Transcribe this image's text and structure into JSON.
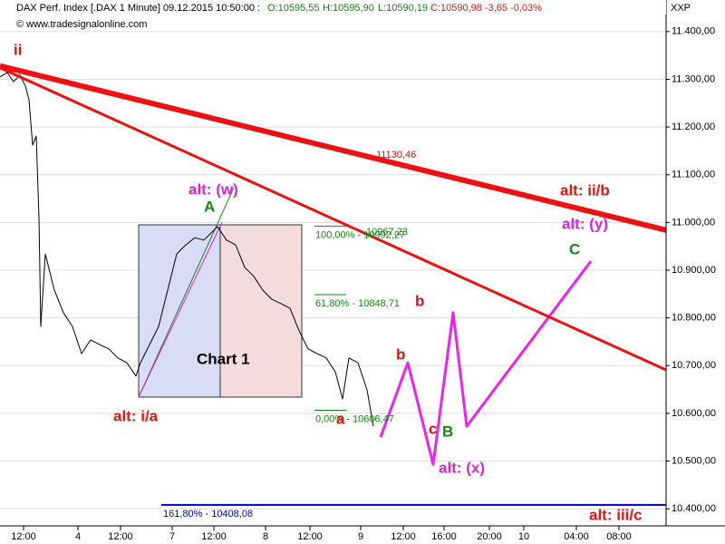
{
  "header": {
    "instrument": "DAX Perf. Index [.DAX  1 Minute] 09.12.2015 10:50:00 :",
    "open": "O:10595,55",
    "high": "H:10595,90",
    "low": "L:10590,19",
    "close": "C:10590,98 -3,65 -0,03%",
    "copyright": "© www.tradesignalonline.com",
    "axis_code": "XXP"
  },
  "chart_data": {
    "type": "line",
    "xlim": [
      0,
      147
    ],
    "ylim": [
      10368,
      11451
    ],
    "grid": true,
    "xticks": [
      {
        "value": 5.2,
        "label": "12:00"
      },
      {
        "value": 17.2,
        "label": "4"
      },
      {
        "value": 26.6,
        "label": "12:00"
      },
      {
        "value": 38,
        "label": "7"
      },
      {
        "value": 47.2,
        "label": "12:00"
      },
      {
        "value": 58.6,
        "label": "8"
      },
      {
        "value": 68.4,
        "label": "12:00"
      },
      {
        "value": 79.6,
        "label": "9"
      },
      {
        "value": 89,
        "label": "12:00"
      },
      {
        "value": 98,
        "label": "16:00"
      },
      {
        "value": 108,
        "label": "20:00"
      },
      {
        "value": 115.6,
        "label": "10"
      },
      {
        "value": 127.2,
        "label": "04:00"
      },
      {
        "value": 136.6,
        "label": "08:00"
      }
    ],
    "yticks": [
      {
        "value": 10400,
        "label": "10.400,00"
      },
      {
        "value": 10500,
        "label": "10.500,00"
      },
      {
        "value": 10600,
        "label": "10.600,00"
      },
      {
        "value": 10700,
        "label": "10.700,00"
      },
      {
        "value": 10800,
        "label": "10.800,00"
      },
      {
        "value": 10900,
        "label": "10.900,00"
      },
      {
        "value": 11000,
        "label": "11.000,00"
      },
      {
        "value": 11100,
        "label": "11.100,00"
      },
      {
        "value": 11200,
        "label": "11.200,00"
      },
      {
        "value": 11300,
        "label": "11.300,00"
      },
      {
        "value": 11400,
        "label": "11.400,00"
      }
    ],
    "series": [
      {
        "color": "#000000",
        "width": 1,
        "x": [
          0,
          1.6,
          3,
          4.4,
          5.6,
          6.4,
          7.2,
          8,
          8.6,
          9,
          10,
          12,
          14,
          16,
          18,
          20,
          22,
          24,
          26,
          28,
          30,
          31,
          33,
          35,
          37,
          39,
          41,
          43,
          45,
          48,
          50,
          52,
          54,
          56,
          58,
          60,
          62,
          64,
          66,
          68,
          70,
          72,
          74,
          75.6,
          77,
          79,
          81,
          82.4
        ],
        "values": [
          11305,
          11314,
          11295,
          11309,
          11286,
          11257,
          11162,
          11181,
          11010,
          10782,
          10934,
          10858,
          10811,
          10782,
          10725,
          10754,
          10744,
          10735,
          10716,
          10706,
          10678,
          10706,
          10744,
          10782,
          10858,
          10934,
          10953,
          10968,
          10963,
          10991,
          10963,
          10953,
          10906,
          10887,
          10858,
          10839,
          10830,
          10820,
          10773,
          10735,
          10725,
          10716,
          10687,
          10630,
          10716,
          10706,
          10649,
          10573
        ]
      },
      {
        "color": "#ee22ee",
        "width": 3,
        "x": [
          84,
          90,
          95.6,
          100,
          103,
          130.4
        ],
        "values": [
          10550,
          10706,
          10493,
          10811,
          10573,
          10919
        ]
      },
      {
        "color": "#ee1111",
        "width": 6,
        "x": [
          0,
          147
        ],
        "values": [
          11328,
          10984
        ]
      },
      {
        "color": "#ee1111",
        "width": 3,
        "x": [
          0,
          147
        ],
        "values": [
          11324,
          10691
        ]
      },
      {
        "color": "#0000cc",
        "width": 2,
        "x": [
          35.6,
          147
        ],
        "values": [
          10408.08,
          10408.08
        ]
      }
    ],
    "fib_levels": [
      {
        "label": "100,00% - 10992,27",
        "value": 10992.27
      },
      {
        "label": "61,80% - 10848,71",
        "value": 10848.71
      },
      {
        "label": "0,00% - 10606,47",
        "value": 10606.47
      }
    ],
    "fib_extension": {
      "label": "161,80% - 10408,08"
    },
    "annotations": [
      {
        "text": "ii",
        "color": "#dd1111"
      },
      {
        "text": "alt: (w)",
        "color": "#dd22dd"
      },
      {
        "text": "A",
        "color": "#118811"
      },
      {
        "text": "Chart 1",
        "color": "#000000"
      },
      {
        "text": "alt: i/a",
        "color": "#ee1111"
      },
      {
        "text": "a",
        "color": "#dd1111"
      },
      {
        "text": "b",
        "color": "#dd1111"
      },
      {
        "text": "b",
        "color": "#dd1111"
      },
      {
        "text": "c",
        "color": "#dd1111"
      },
      {
        "text": "B",
        "color": "#118811"
      },
      {
        "text": "alt: (x)",
        "color": "#dd22dd"
      },
      {
        "text": "alt: (y)",
        "color": "#dd22dd"
      },
      {
        "text": "C",
        "color": "#118811"
      },
      {
        "text": "alt: ii/b",
        "color": "#ee1111"
      },
      {
        "text": "alt: iii/c",
        "color": "#ee1111"
      },
      {
        "text": "11130,46",
        "color": "#dd1111"
      },
      {
        "text": "10967,23",
        "color": "#118811"
      }
    ]
  }
}
